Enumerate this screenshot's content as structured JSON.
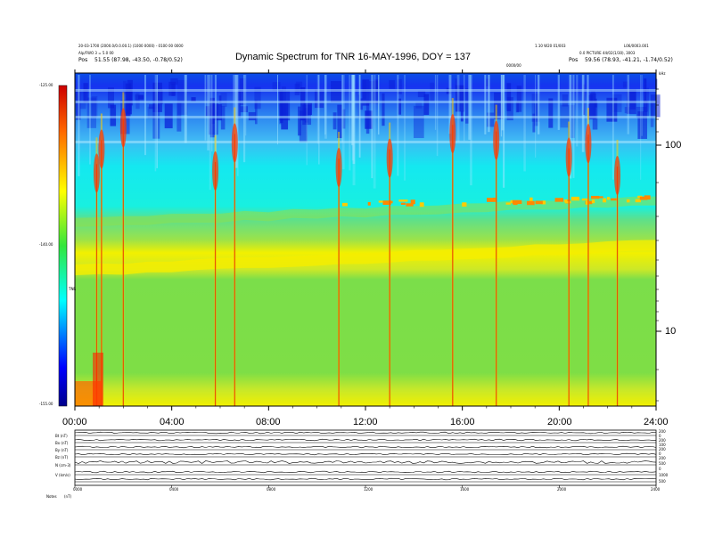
{
  "header": {
    "line1_left": "20-03-1700 (2000.0/0.0.00.1) (1000 0000) - 0100 00 0000",
    "line2_left": "Alp/FWO 3 = 5.0 00",
    "line3_label": "Pos",
    "line3_value": "51.55 (87.98, -43.50, -0.78/0.52)",
    "line1_right": "1.10 W20 01/003",
    "line2_right": "0.0 PICTURE 44/02(1/30), 3003",
    "line3_right_label": "Pos",
    "line3_right_value": "59.56 (78.93, -41.21, -1.74/0.52)",
    "top_right_code": "L06/0003.001",
    "top_right_unit": "kHz",
    "center_mark": "0000/00"
  },
  "chart_data": {
    "type": "heatmap",
    "title": "Dynamic Spectrum for TNR 16-MAY-1996, DOY = 137",
    "xlabel": "",
    "ylabel": "",
    "x_ticks": [
      "00:00",
      "04:00",
      "08:00",
      "12:00",
      "16:00",
      "20:00",
      "24:00"
    ],
    "xlim_hours": [
      0,
      24
    ],
    "y_scale": "log",
    "y_ticks": [
      "100",
      "10"
    ],
    "colorbar": {
      "ticks": [
        "-125.00",
        "-140.00",
        "-155.00"
      ],
      "range": [
        -155,
        -125
      ],
      "label": "TNR",
      "colors": [
        "#00008b",
        "#0000ff",
        "#00ffff",
        "#33e63c",
        "#ffff00",
        "#ff6600",
        "#cc0000"
      ]
    },
    "bright_bursts_hours": [
      0.9,
      1.1,
      2.0,
      5.8,
      6.6,
      10.9,
      13.0,
      15.6,
      17.4,
      20.4,
      21.2,
      22.4
    ],
    "bottom_panel": {
      "row_labels": [
        "Bt (nT)",
        "Bx (nT)",
        "By (nT)",
        "Bz (nT)",
        "N (cm-3)",
        "V (km/s)"
      ],
      "right_ticks": [
        "200",
        "0",
        "200",
        "100",
        "200",
        "0",
        "200",
        "500",
        "0",
        "1000",
        "500"
      ],
      "x_ticks": [
        "0000",
        "0400",
        "0800",
        "1200",
        "1600",
        "2000",
        "2400"
      ],
      "footer_label": "Notes",
      "footer_value": "(nT)"
    }
  }
}
